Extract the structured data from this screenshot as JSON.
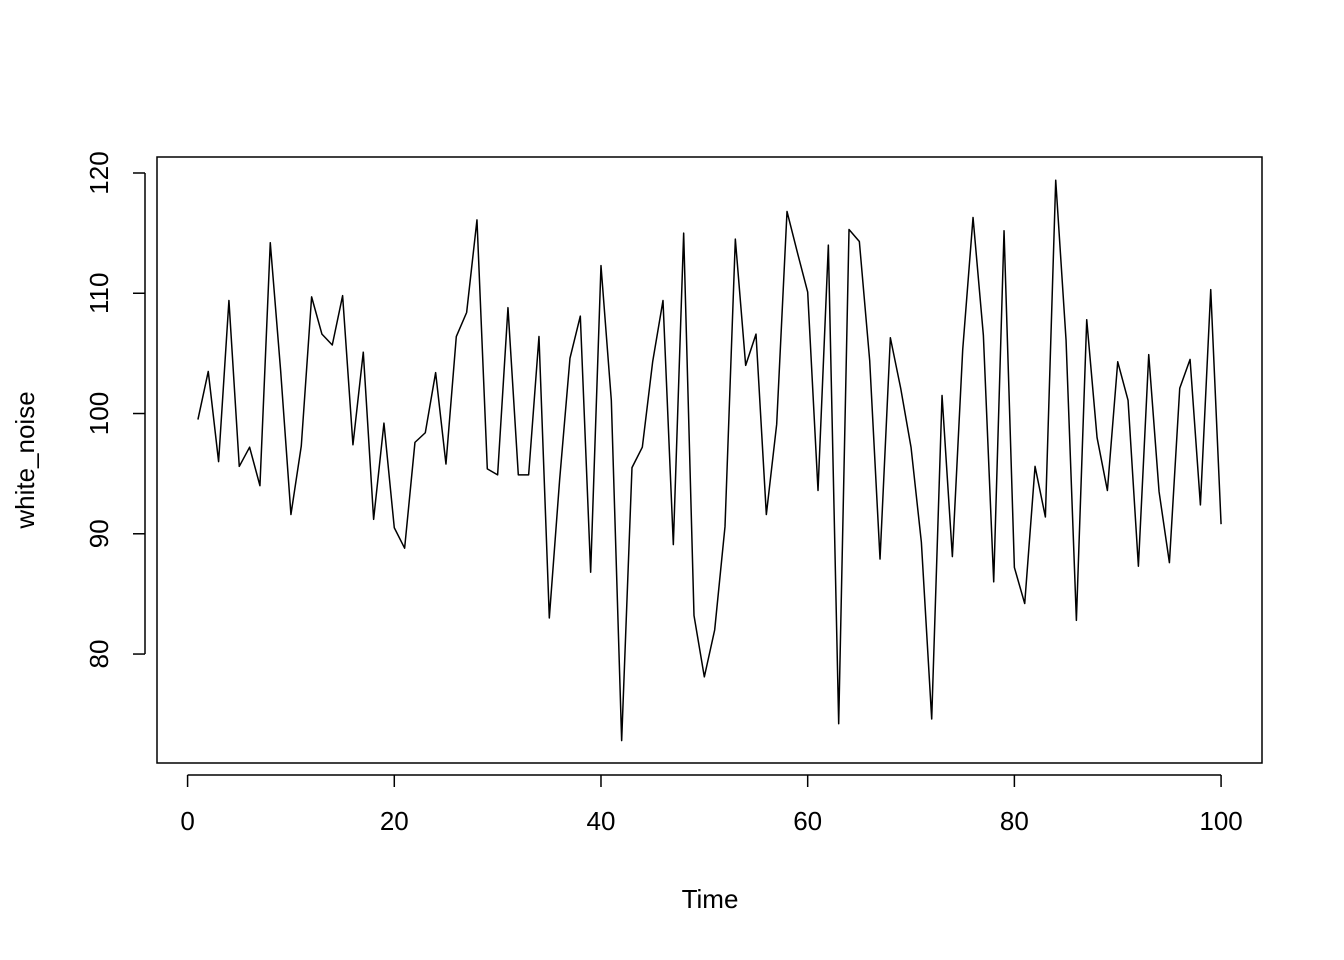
{
  "chart_data": {
    "type": "line",
    "x_label": "Time",
    "y_label": "white_noise",
    "x": [
      1,
      2,
      3,
      4,
      5,
      6,
      7,
      8,
      9,
      10,
      11,
      12,
      13,
      14,
      15,
      16,
      17,
      18,
      19,
      20,
      21,
      22,
      23,
      24,
      25,
      26,
      27,
      28,
      29,
      30,
      31,
      32,
      33,
      34,
      35,
      36,
      37,
      38,
      39,
      40,
      41,
      42,
      43,
      44,
      45,
      46,
      47,
      48,
      49,
      50,
      51,
      52,
      53,
      54,
      55,
      56,
      57,
      58,
      59,
      60,
      61,
      62,
      63,
      64,
      65,
      66,
      67,
      68,
      69,
      70,
      71,
      72,
      73,
      74,
      75,
      76,
      77,
      78,
      79,
      80,
      81,
      82,
      83,
      84,
      85,
      86,
      87,
      88,
      89,
      90,
      91,
      92,
      93,
      94,
      95,
      96,
      97,
      98,
      99,
      100
    ],
    "series": [
      {
        "name": "white_noise",
        "color": "#000000",
        "values": [
          99.5,
          103.5,
          96.0,
          109.4,
          95.6,
          97.2,
          94.0,
          114.2,
          103.6,
          91.6,
          97.3,
          109.7,
          106.6,
          105.7,
          109.8,
          97.4,
          105.1,
          91.2,
          99.2,
          90.5,
          88.8,
          97.6,
          98.4,
          103.4,
          95.8,
          106.4,
          108.4,
          116.1,
          95.4,
          94.9,
          108.8,
          94.9,
          94.9,
          106.4,
          83.0,
          94.5,
          104.6,
          108.1,
          86.8,
          112.3,
          101.1,
          72.8,
          95.5,
          97.2,
          104.3,
          109.4,
          89.1,
          115.0,
          83.2,
          78.1,
          82.0,
          90.6,
          114.5,
          104.0,
          106.6,
          91.6,
          99.1,
          116.8,
          113.4,
          110.1,
          93.6,
          114.0,
          74.2,
          115.3,
          114.3,
          104.4,
          87.9,
          106.3,
          102.1,
          97.2,
          89.3,
          74.6,
          101.5,
          88.1,
          105.3,
          116.3,
          106.5,
          86.0,
          115.2,
          87.2,
          84.2,
          95.6,
          91.4,
          119.4,
          106.1,
          82.8,
          107.8,
          98.0,
          93.6,
          104.3,
          101.1,
          87.3,
          104.9,
          93.5,
          87.6,
          102.1,
          104.5,
          92.4,
          110.3,
          90.8
        ]
      }
    ],
    "xlim": [
      -2.96,
      103.96
    ],
    "ylim": [
      70.94,
      121.33
    ],
    "xticks": [
      0,
      20,
      40,
      60,
      80,
      100
    ],
    "yticks": [
      80,
      90,
      100,
      110,
      120
    ],
    "grid": false
  }
}
